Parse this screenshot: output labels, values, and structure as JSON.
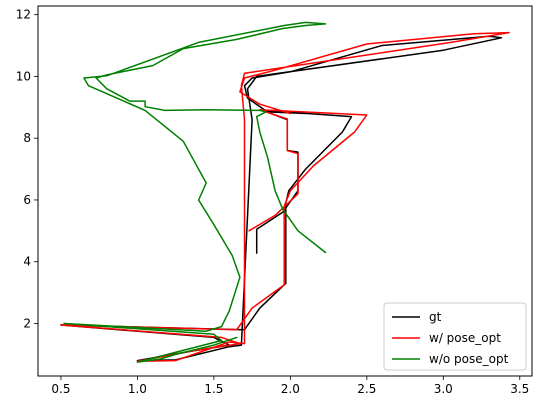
{
  "chart_data": {
    "type": "line",
    "title": "",
    "xlabel": "",
    "ylabel": "",
    "xlim": [
      0.35,
      3.58
    ],
    "ylim": [
      0.3,
      12.28
    ],
    "xticks": [
      0.5,
      1.0,
      1.5,
      2.0,
      2.5,
      3.0,
      3.5
    ],
    "xtick_labels": [
      "0.5",
      "1.0",
      "1.5",
      "2.0",
      "2.5",
      "3.0",
      "3.5"
    ],
    "yticks": [
      2,
      4,
      6,
      8,
      10,
      12
    ],
    "ytick_labels": [
      "2",
      "4",
      "6",
      "8",
      "10",
      "12"
    ],
    "grid": false,
    "legend_position": "lower-right",
    "series": [
      {
        "name": "gt",
        "color": "#000000",
        "points": [
          [
            1.78,
            4.28
          ],
          [
            1.78,
            5.05
          ],
          [
            1.95,
            5.6
          ],
          [
            2.05,
            6.3
          ],
          [
            2.05,
            7.55
          ],
          [
            1.98,
            7.6
          ],
          [
            1.98,
            8.6
          ],
          [
            1.82,
            8.9
          ],
          [
            2.4,
            8.7
          ],
          [
            2.34,
            8.2
          ],
          [
            2.1,
            7.0
          ],
          [
            1.99,
            6.3
          ],
          [
            1.97,
            5.9
          ],
          [
            1.97,
            3.3
          ],
          [
            1.8,
            2.5
          ],
          [
            1.7,
            1.8
          ],
          [
            0.5,
            1.95
          ],
          [
            1.5,
            1.55
          ],
          [
            1.6,
            1.3
          ],
          [
            1.35,
            1.1
          ],
          [
            1.0,
            0.8
          ],
          [
            1.25,
            0.82
          ],
          [
            1.6,
            1.25
          ],
          [
            1.68,
            1.3
          ],
          [
            1.75,
            8.6
          ],
          [
            1.72,
            9.6
          ],
          [
            1.78,
            10.0
          ],
          [
            3.0,
            10.85
          ],
          [
            3.38,
            11.25
          ],
          [
            3.3,
            11.3
          ],
          [
            2.6,
            11.0
          ],
          [
            2.0,
            10.15
          ],
          [
            1.75,
            9.95
          ],
          [
            1.7,
            9.7
          ],
          [
            1.72,
            9.3
          ],
          [
            1.85,
            8.85
          ],
          [
            2.1,
            8.8
          ]
        ]
      },
      {
        "name": "w/ pose_opt",
        "color": "#ff0000",
        "points": [
          [
            1.73,
            5.0
          ],
          [
            1.9,
            5.5
          ],
          [
            2.05,
            6.2
          ],
          [
            2.05,
            7.5
          ],
          [
            1.98,
            7.6
          ],
          [
            1.98,
            8.62
          ],
          [
            1.8,
            8.92
          ],
          [
            2.5,
            8.75
          ],
          [
            2.42,
            8.2
          ],
          [
            2.15,
            7.1
          ],
          [
            2.0,
            6.3
          ],
          [
            1.96,
            5.8
          ],
          [
            1.96,
            3.25
          ],
          [
            1.75,
            2.5
          ],
          [
            1.65,
            1.8
          ],
          [
            0.5,
            1.95
          ],
          [
            1.55,
            1.55
          ],
          [
            1.67,
            1.35
          ],
          [
            1.35,
            1.1
          ],
          [
            1.0,
            0.78
          ],
          [
            1.25,
            0.8
          ],
          [
            1.6,
            1.4
          ],
          [
            1.7,
            1.35
          ],
          [
            1.7,
            8.6
          ],
          [
            1.68,
            9.7
          ],
          [
            1.7,
            10.1
          ],
          [
            3.05,
            11.1
          ],
          [
            3.43,
            11.42
          ],
          [
            3.2,
            11.38
          ],
          [
            2.5,
            11.05
          ],
          [
            1.9,
            10.2
          ],
          [
            1.7,
            9.95
          ],
          [
            1.67,
            9.5
          ],
          [
            1.8,
            9.1
          ],
          [
            2.0,
            8.8
          ]
        ]
      },
      {
        "name": "w/o pose_opt",
        "color": "#008000",
        "points": [
          [
            2.23,
            4.3
          ],
          [
            2.05,
            5.0
          ],
          [
            1.95,
            5.7
          ],
          [
            1.9,
            6.3
          ],
          [
            1.85,
            7.4
          ],
          [
            1.8,
            8.2
          ],
          [
            1.78,
            8.7
          ],
          [
            1.84,
            8.85
          ],
          [
            1.8,
            8.9
          ],
          [
            1.45,
            8.92
          ],
          [
            1.18,
            8.9
          ],
          [
            1.05,
            9.02
          ],
          [
            1.05,
            9.2
          ],
          [
            0.95,
            9.2
          ],
          [
            0.8,
            9.6
          ],
          [
            0.73,
            9.95
          ],
          [
            0.8,
            10.05
          ],
          [
            1.1,
            10.35
          ],
          [
            1.3,
            10.9
          ],
          [
            1.65,
            11.2
          ],
          [
            1.95,
            11.55
          ],
          [
            2.1,
            11.65
          ],
          [
            2.23,
            11.7
          ],
          [
            2.1,
            11.75
          ],
          [
            1.96,
            11.65
          ],
          [
            1.4,
            11.1
          ],
          [
            0.8,
            10.02
          ],
          [
            0.65,
            9.95
          ],
          [
            0.68,
            9.7
          ],
          [
            1.05,
            8.9
          ],
          [
            1.3,
            7.9
          ],
          [
            1.45,
            6.55
          ],
          [
            1.4,
            6.0
          ],
          [
            1.5,
            5.2
          ],
          [
            1.62,
            4.2
          ],
          [
            1.67,
            3.5
          ],
          [
            1.6,
            2.4
          ],
          [
            1.55,
            1.9
          ],
          [
            1.45,
            1.75
          ],
          [
            0.52,
            2.0
          ],
          [
            1.5,
            1.65
          ],
          [
            1.55,
            1.45
          ],
          [
            1.0,
            0.75
          ],
          [
            1.15,
            0.85
          ],
          [
            1.25,
            1.0
          ],
          [
            1.5,
            1.3
          ],
          [
            1.65,
            1.55
          ]
        ]
      }
    ]
  }
}
